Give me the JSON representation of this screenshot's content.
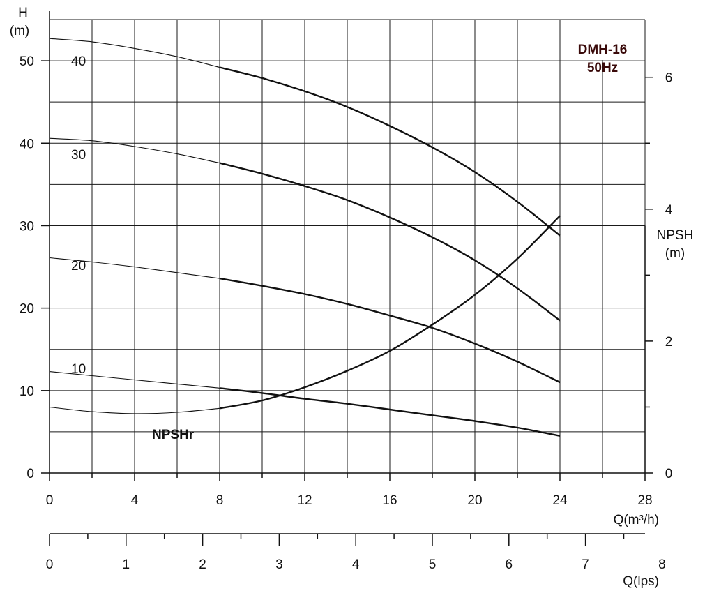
{
  "chart_data": {
    "type": "line",
    "model": "DMH-16",
    "frequency": "50Hz",
    "y_left": {
      "label_line1": "H",
      "label_line2": "(m)",
      "range": [
        0,
        55
      ],
      "ticks": [
        0,
        10,
        20,
        30,
        40,
        50
      ]
    },
    "y_right": {
      "label_line1": "NPSH",
      "label_line2": "(m)",
      "range": [
        0,
        6.875
      ],
      "ticks": [
        0,
        2,
        4,
        6
      ]
    },
    "x_primary": {
      "label": "Q(m³/h)",
      "range": [
        0,
        28
      ],
      "ticks": [
        0,
        4,
        8,
        12,
        16,
        20,
        24,
        28
      ]
    },
    "x_secondary": {
      "label": "Q(lps)",
      "ticks": [
        0,
        1,
        2,
        3,
        4,
        5,
        6,
        7,
        8
      ]
    },
    "grid": true,
    "series": [
      {
        "name": "40",
        "axis": "left",
        "x": [
          0,
          2,
          4,
          6,
          8,
          10,
          12,
          14,
          16,
          18,
          20,
          22,
          24
        ],
        "y": [
          52.7,
          52.3,
          51.5,
          50.5,
          49.2,
          47.9,
          46.3,
          44.4,
          42.1,
          39.5,
          36.5,
          32.9,
          28.8
        ]
      },
      {
        "name": "30",
        "axis": "left",
        "x": [
          0,
          2,
          4,
          6,
          8,
          10,
          12,
          14,
          16,
          18,
          20,
          22,
          24
        ],
        "y": [
          40.6,
          40.3,
          39.6,
          38.7,
          37.6,
          36.3,
          34.8,
          33.1,
          31.0,
          28.6,
          25.8,
          22.4,
          18.5
        ]
      },
      {
        "name": "20",
        "axis": "left",
        "x": [
          0,
          2,
          4,
          6,
          8,
          10,
          12,
          14,
          16,
          18,
          20,
          22,
          24
        ],
        "y": [
          26.1,
          25.6,
          25.0,
          24.3,
          23.6,
          22.7,
          21.7,
          20.5,
          19.1,
          17.6,
          15.7,
          13.5,
          11.0
        ]
      },
      {
        "name": "10",
        "axis": "left",
        "x": [
          0,
          2,
          4,
          6,
          8,
          10,
          12,
          14,
          16,
          18,
          20,
          22,
          24
        ],
        "y": [
          12.3,
          11.8,
          11.3,
          10.8,
          10.3,
          9.7,
          9.0,
          8.4,
          7.7,
          7.0,
          6.3,
          5.5,
          4.5
        ]
      },
      {
        "name": "NPSHr",
        "axis": "right",
        "x": [
          0,
          2,
          4,
          6,
          8,
          10,
          12,
          14,
          16,
          18,
          20,
          22,
          24
        ],
        "y": [
          1.0,
          0.93,
          0.9,
          0.92,
          0.98,
          1.1,
          1.3,
          1.55,
          1.85,
          2.25,
          2.7,
          3.25,
          3.9
        ]
      }
    ],
    "curve_labels": [
      "40",
      "30",
      "20",
      "10"
    ],
    "npshr_label": "NPSHr"
  }
}
